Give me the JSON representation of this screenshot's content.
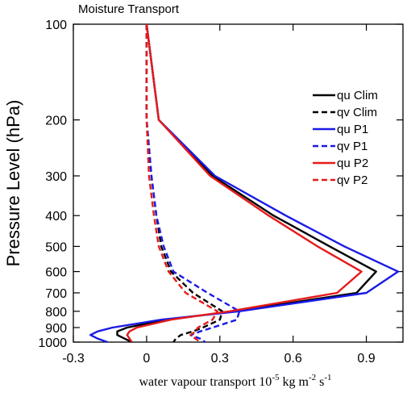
{
  "chart_data": {
    "type": "line",
    "title": "Moisture Transport",
    "xlabel": {
      "main": "water vapour transport  10",
      "exp1": "-5",
      "mid": " kg m",
      "exp2": "-2",
      "mid2": " s",
      "exp3": "-1"
    },
    "ylabel": "Pressure Level (hPa)",
    "xlim": [
      -0.3,
      1.05
    ],
    "ylim": [
      100,
      1000
    ],
    "y_scale": "log",
    "y_inverted": true,
    "x_ticks": [
      -0.3,
      0,
      0.3,
      0.6,
      0.9
    ],
    "x_tick_labels": [
      "-0.3",
      "0",
      "0.3",
      "0.6",
      "0.9"
    ],
    "y_ticks": [
      100,
      200,
      300,
      400,
      500,
      600,
      700,
      800,
      900,
      1000
    ],
    "y_tick_labels": [
      "100",
      "200",
      "300",
      "400",
      "500",
      "600",
      "700",
      "800",
      "900",
      "1000"
    ],
    "legend_position": "top-right",
    "pressure_levels": [
      100,
      200,
      300,
      400,
      500,
      600,
      700,
      800,
      850,
      900,
      925,
      950,
      975,
      1000
    ],
    "series": [
      {
        "name": "qu Clim",
        "color": "#000000",
        "dash": "solid",
        "values": [
          0.0,
          0.05,
          0.27,
          0.52,
          0.75,
          0.94,
          0.86,
          0.36,
          0.08,
          -0.08,
          -0.12,
          -0.12,
          -0.09,
          -0.06
        ]
      },
      {
        "name": "qv Clim",
        "color": "#000000",
        "dash": "dashed",
        "values": [
          0.0,
          0.0,
          0.02,
          0.04,
          0.06,
          0.1,
          0.19,
          0.31,
          0.3,
          0.23,
          0.19,
          0.14,
          0.12,
          0.11
        ]
      },
      {
        "name": "qu P1",
        "color": "#1a1ae6",
        "dash": "solid",
        "values": [
          0.0,
          0.05,
          0.28,
          0.57,
          0.81,
          1.03,
          0.9,
          0.38,
          0.06,
          -0.14,
          -0.2,
          -0.23,
          -0.2,
          -0.16
        ]
      },
      {
        "name": "qv P1",
        "color": "#1a1ae6",
        "dash": "dashed",
        "values": [
          0.0,
          0.0,
          0.02,
          0.04,
          0.07,
          0.11,
          0.25,
          0.38,
          0.37,
          0.27,
          0.22,
          0.18,
          0.22,
          0.24
        ]
      },
      {
        "name": "qu P2",
        "color": "#e61a1a",
        "dash": "solid",
        "values": [
          0.0,
          0.05,
          0.26,
          0.5,
          0.7,
          0.88,
          0.78,
          0.34,
          0.1,
          -0.04,
          -0.07,
          -0.08,
          -0.07,
          -0.06
        ]
      },
      {
        "name": "qv P2",
        "color": "#e61a1a",
        "dash": "dashed",
        "values": [
          0.0,
          0.0,
          0.01,
          0.03,
          0.05,
          0.09,
          0.16,
          0.29,
          0.27,
          0.21,
          0.2,
          0.18,
          0.2,
          0.22
        ]
      }
    ]
  }
}
